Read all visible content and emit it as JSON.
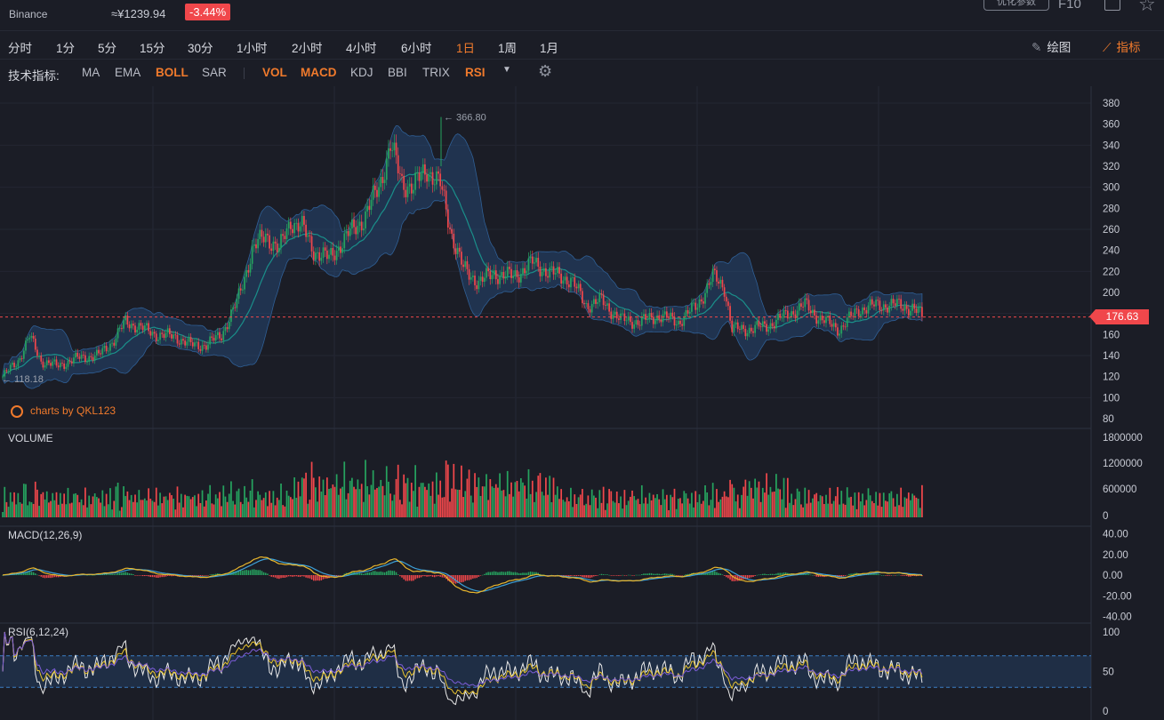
{
  "header": {
    "exchange": "Binance",
    "cny_price": "≈¥1239.94",
    "change": "-3.44%",
    "optimize_label": "优化参数",
    "f10_label": "F10"
  },
  "timeframes": [
    "分时",
    "1分",
    "5分",
    "15分",
    "30分",
    "1小时",
    "2小时",
    "4小时",
    "6小时",
    "1日",
    "1周",
    "1月"
  ],
  "active_timeframe_index": 9,
  "tools": {
    "draw_label": "绘图",
    "indicator_label": "指标"
  },
  "indicator_bar": {
    "label": "技术指标:",
    "main": [
      {
        "name": "MA",
        "on": false
      },
      {
        "name": "EMA",
        "on": false
      },
      {
        "name": "BOLL",
        "on": true
      },
      {
        "name": "SAR",
        "on": false
      }
    ],
    "sub": [
      {
        "name": "VOL",
        "on": true
      },
      {
        "name": "MACD",
        "on": true
      },
      {
        "name": "KDJ",
        "on": false
      },
      {
        "name": "BBI",
        "on": false
      },
      {
        "name": "TRIX",
        "on": false
      },
      {
        "name": "RSI",
        "on": true
      }
    ]
  },
  "chart_data": {
    "type": "candlestick",
    "price_axis": {
      "ticks": [
        "380",
        "360",
        "340",
        "320",
        "300",
        "280",
        "260",
        "240",
        "220",
        "200",
        "180",
        "160",
        "140",
        "120",
        "100",
        "80"
      ],
      "ylim": [
        80,
        390
      ]
    },
    "high_label": "366.80",
    "low_label": "118.18",
    "high_value": 366.8,
    "low_value": 118.18,
    "current_price": "176.63",
    "current_value": 176.63,
    "watermark": "charts by QKL123",
    "close_path": [
      [
        0,
        120
      ],
      [
        8,
        135
      ],
      [
        14,
        158
      ],
      [
        20,
        135
      ],
      [
        28,
        130
      ],
      [
        40,
        138
      ],
      [
        50,
        140
      ],
      [
        58,
        155
      ],
      [
        64,
        172
      ],
      [
        70,
        168
      ],
      [
        80,
        160
      ],
      [
        90,
        158
      ],
      [
        98,
        150
      ],
      [
        106,
        150
      ],
      [
        114,
        160
      ],
      [
        122,
        190
      ],
      [
        130,
        240
      ],
      [
        137,
        255
      ],
      [
        144,
        240
      ],
      [
        150,
        268
      ],
      [
        156,
        262
      ],
      [
        162,
        240
      ],
      [
        170,
        232
      ],
      [
        180,
        255
      ],
      [
        188,
        270
      ],
      [
        196,
        300
      ],
      [
        202,
        340
      ],
      [
        208,
        305
      ],
      [
        214,
        300
      ],
      [
        221,
        318
      ],
      [
        228,
        302
      ],
      [
        234,
        255
      ],
      [
        240,
        222
      ],
      [
        248,
        210
      ],
      [
        256,
        218
      ],
      [
        266,
        215
      ],
      [
        276,
        228
      ],
      [
        286,
        218
      ],
      [
        296,
        212
      ],
      [
        304,
        188
      ],
      [
        312,
        192
      ],
      [
        322,
        174
      ],
      [
        332,
        172
      ],
      [
        342,
        178
      ],
      [
        352,
        172
      ],
      [
        362,
        188
      ],
      [
        370,
        215
      ],
      [
        376,
        205
      ],
      [
        380,
        165
      ],
      [
        388,
        165
      ],
      [
        398,
        168
      ],
      [
        408,
        178
      ],
      [
        418,
        188
      ],
      [
        426,
        175
      ],
      [
        436,
        165
      ],
      [
        446,
        184
      ],
      [
        456,
        188
      ],
      [
        466,
        188
      ],
      [
        474,
        185
      ],
      [
        480,
        176
      ]
    ],
    "n_candles": 480,
    "volume": {
      "title": "VOLUME",
      "ticks": [
        "1800000",
        "1200000",
        "600000",
        "0"
      ],
      "ylim": [
        0,
        1800000
      ]
    },
    "macd": {
      "title": "MACD(12,26,9)",
      "ticks": [
        "40.00",
        "20.00",
        "0.00",
        "-20.00",
        "-40.00"
      ],
      "ylim": [
        -40,
        40
      ]
    },
    "rsi": {
      "title": "RSI(6,12,24)",
      "ticks": [
        "100",
        "50",
        "0"
      ],
      "ylim": [
        0,
        100
      ],
      "bands": [
        30,
        70
      ]
    },
    "colors": {
      "up": "#26a35f",
      "down": "#f0474b",
      "boll_mid": "#1a8f8a",
      "macd_dif": "#e9b62c",
      "macd_dea": "#3d9fd6",
      "rsi6": "#e8e8e8",
      "rsi12": "#e9c430",
      "rsi24": "#7b5cd6"
    }
  }
}
